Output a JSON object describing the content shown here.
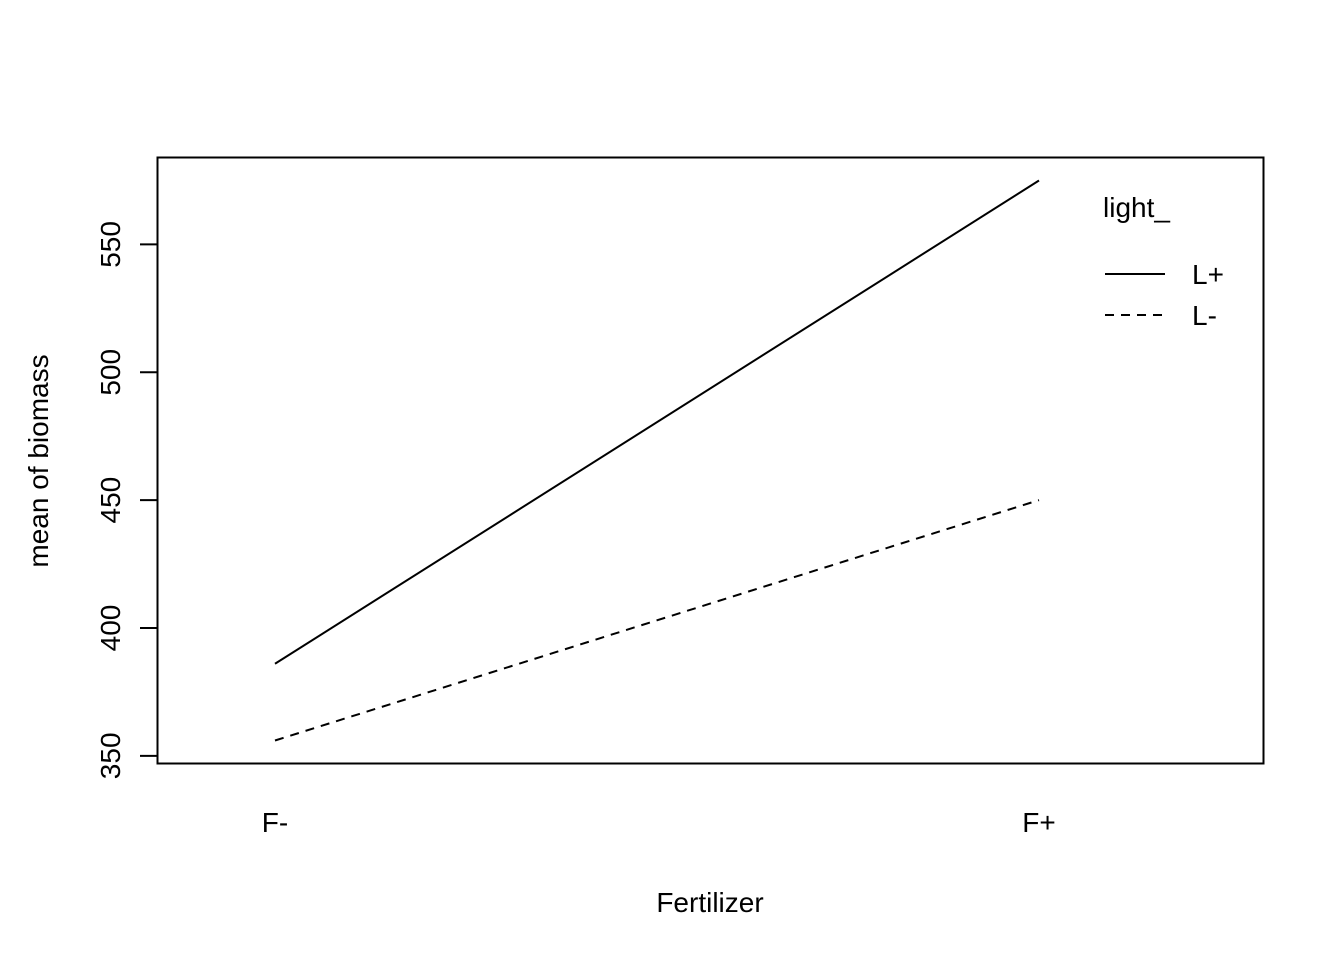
{
  "chart_data": {
    "type": "line",
    "title": "",
    "xlabel": "Fertilizer",
    "ylabel": "mean of  biomass",
    "categories": [
      "F-",
      "F+"
    ],
    "yticks": [
      350,
      400,
      450,
      500,
      550
    ],
    "ylim": [
      347,
      584
    ],
    "grid": false,
    "legend": {
      "title": "light_",
      "position": "top-right",
      "entries": [
        "L+",
        "L-"
      ]
    },
    "series": [
      {
        "name": "L+",
        "linestyle": "solid",
        "values": [
          386,
          575
        ]
      },
      {
        "name": "L-",
        "linestyle": "dashed",
        "values": [
          356,
          450
        ]
      }
    ],
    "colors": {
      "line": "#000000",
      "background": "#ffffff"
    }
  }
}
